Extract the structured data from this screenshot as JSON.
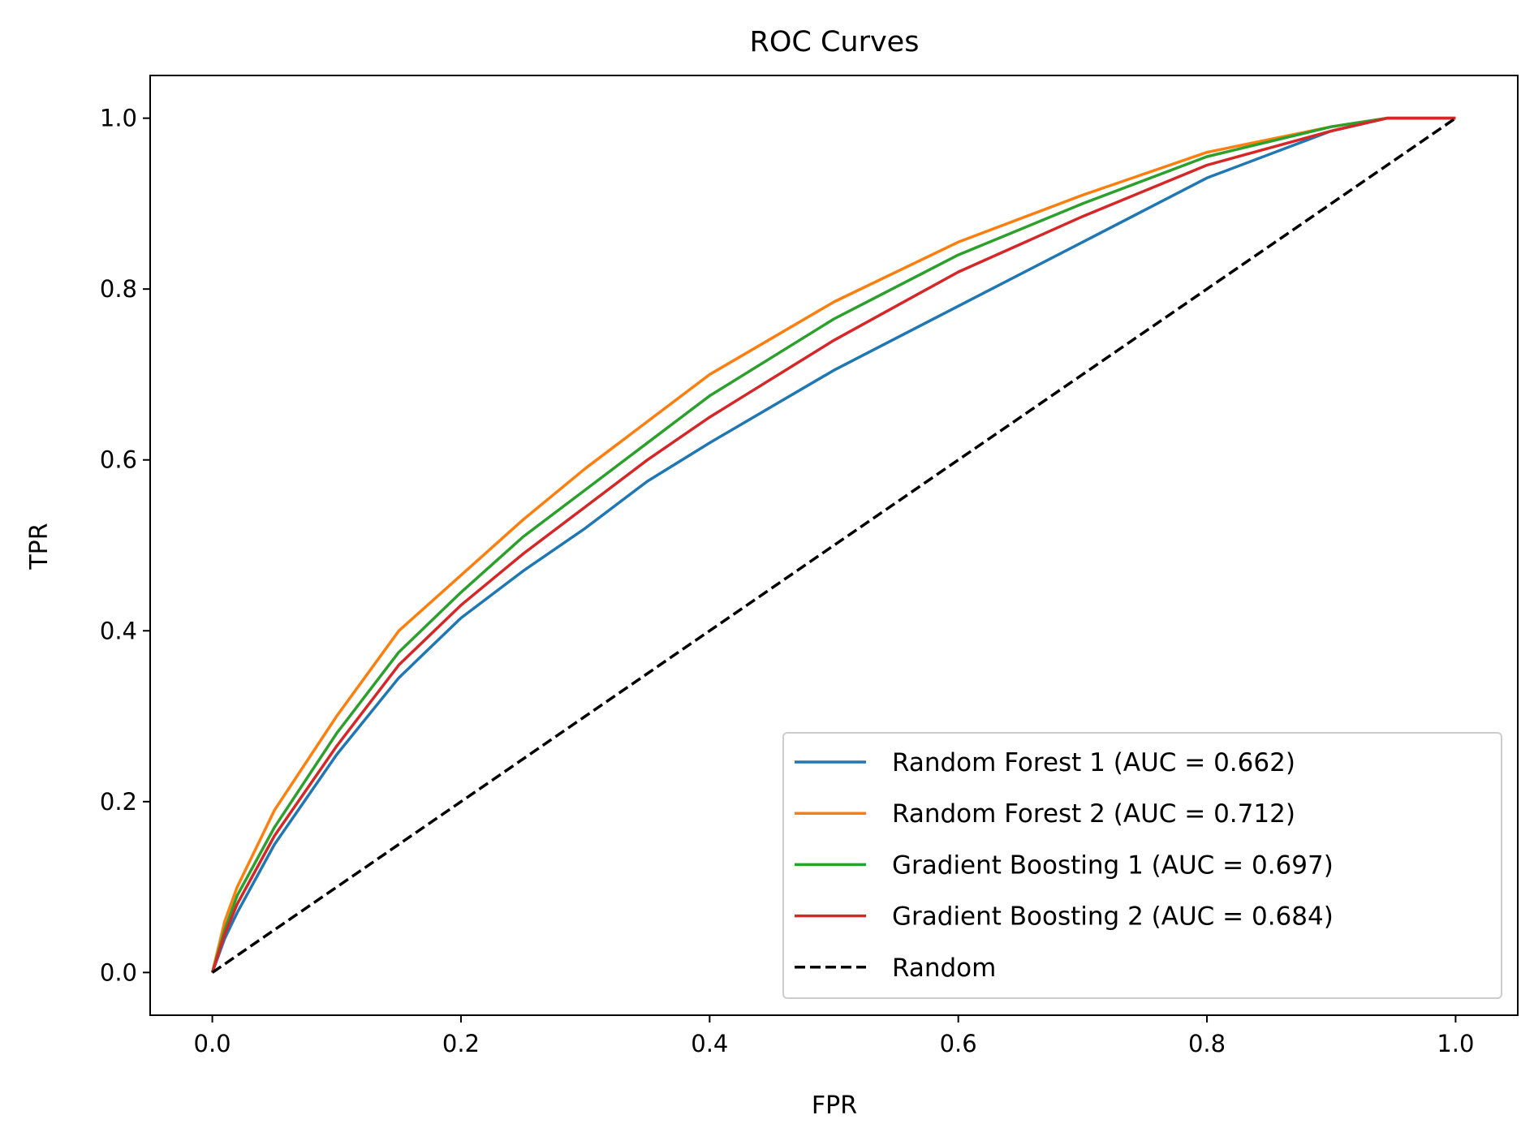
{
  "chart_data": {
    "type": "line",
    "title": "ROC Curves",
    "xlabel": "FPR",
    "ylabel": "TPR",
    "xlim": [
      -0.05,
      1.05
    ],
    "ylim": [
      -0.05,
      1.05
    ],
    "xticks": [
      "0.0",
      "0.2",
      "0.4",
      "0.6",
      "0.8",
      "1.0"
    ],
    "yticks": [
      "0.0",
      "0.2",
      "0.4",
      "0.6",
      "0.8",
      "1.0"
    ],
    "grid": false,
    "legend_placement": "lower-right",
    "series": [
      {
        "name": "Random Forest 1 (AUC = 0.662)",
        "color": "#1f77b4",
        "dash": false,
        "x": [
          0,
          0.01,
          0.02,
          0.05,
          0.1,
          0.15,
          0.2,
          0.25,
          0.3,
          0.35,
          0.4,
          0.5,
          0.6,
          0.7,
          0.8,
          0.9,
          0.945,
          1.0
        ],
        "y": [
          0,
          0.04,
          0.07,
          0.15,
          0.255,
          0.345,
          0.415,
          0.47,
          0.52,
          0.575,
          0.62,
          0.705,
          0.78,
          0.855,
          0.93,
          0.985,
          1.0,
          1.0
        ]
      },
      {
        "name": "Random Forest 2 (AUC = 0.712)",
        "color": "#ff7f0e",
        "dash": false,
        "x": [
          0,
          0.01,
          0.02,
          0.05,
          0.1,
          0.15,
          0.2,
          0.25,
          0.3,
          0.35,
          0.4,
          0.5,
          0.6,
          0.7,
          0.8,
          0.9,
          0.945,
          1.0
        ],
        "y": [
          0,
          0.06,
          0.1,
          0.19,
          0.3,
          0.4,
          0.465,
          0.53,
          0.59,
          0.645,
          0.7,
          0.785,
          0.855,
          0.91,
          0.96,
          0.99,
          1.0,
          1.0
        ]
      },
      {
        "name": "Gradient Boosting 1 (AUC = 0.697)",
        "color": "#2ca02c",
        "dash": false,
        "x": [
          0,
          0.01,
          0.02,
          0.05,
          0.1,
          0.15,
          0.2,
          0.25,
          0.3,
          0.35,
          0.4,
          0.5,
          0.6,
          0.7,
          0.8,
          0.9,
          0.945,
          1.0
        ],
        "y": [
          0,
          0.05,
          0.09,
          0.17,
          0.28,
          0.375,
          0.445,
          0.51,
          0.565,
          0.62,
          0.675,
          0.765,
          0.84,
          0.9,
          0.955,
          0.99,
          1.0,
          1.0
        ]
      },
      {
        "name": "Gradient Boosting 2 (AUC = 0.684)",
        "color": "#d62728",
        "dash": false,
        "x": [
          0,
          0.01,
          0.02,
          0.05,
          0.1,
          0.15,
          0.2,
          0.25,
          0.3,
          0.35,
          0.4,
          0.5,
          0.6,
          0.7,
          0.8,
          0.9,
          0.945,
          1.0
        ],
        "y": [
          0,
          0.045,
          0.08,
          0.16,
          0.265,
          0.36,
          0.43,
          0.49,
          0.545,
          0.6,
          0.65,
          0.74,
          0.82,
          0.885,
          0.945,
          0.985,
          1.0,
          1.0
        ]
      },
      {
        "name": "Random",
        "color": "#000000",
        "dash": true,
        "x": [
          0,
          1
        ],
        "y": [
          0,
          1
        ]
      }
    ]
  }
}
